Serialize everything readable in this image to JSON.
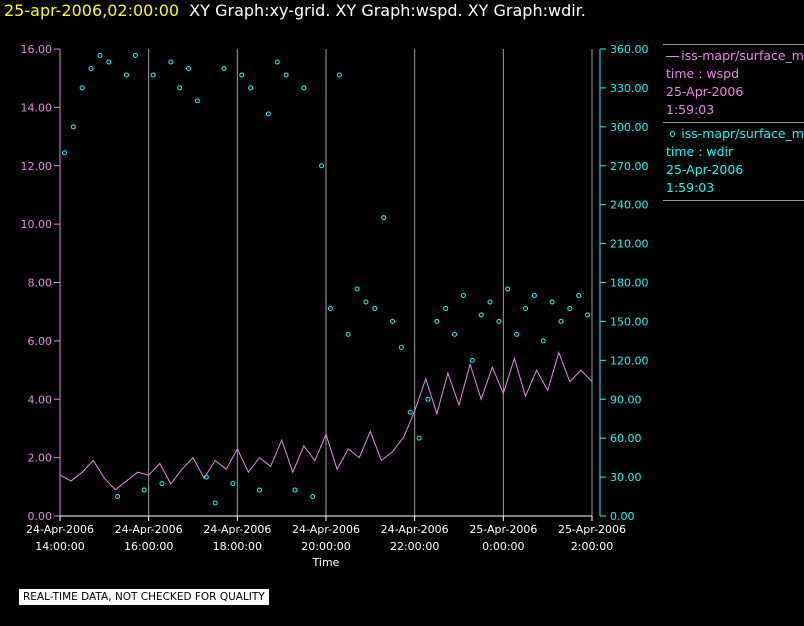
{
  "header": {
    "timestamp": "25-apr-2006,02:00:00",
    "graphs": "XY Graph:xy-grid.  XY Graph:wspd.  XY Graph:wdir."
  },
  "colors": {
    "background": "#000000",
    "wspd": "#ee82ee",
    "wdir": "#00ffff",
    "grid": "#a0a0a0",
    "axis_label": "#ffffff",
    "title_time": "#ffff00"
  },
  "legend": {
    "series1": {
      "line1": "iss-mapr/surface_m",
      "line2": "time : wspd",
      "line3": "25-Apr-2006",
      "line4": "1:59:03"
    },
    "series2": {
      "line1": "iss-mapr/surface_m",
      "line2": "time : wdir",
      "line3": "25-Apr-2006",
      "line4": "1:59:03"
    }
  },
  "footer": "REAL-TIME DATA, NOT CHECKED FOR QUALITY",
  "chart_data": {
    "type": "line",
    "title": "XY Graph:wspd, XY Graph:wdir",
    "xlabel": "Time",
    "x_unit": "hours since 24-Apr-2006 14:00",
    "xlim": [
      0,
      12
    ],
    "x_ticks": [
      {
        "value": 0,
        "date": "24-Apr-2006",
        "time": "14:00:00"
      },
      {
        "value": 2,
        "date": "24-Apr-2006",
        "time": "16:00:00"
      },
      {
        "value": 4,
        "date": "24-Apr-2006",
        "time": "18:00:00"
      },
      {
        "value": 6,
        "date": "24-Apr-2006",
        "time": "20:00:00"
      },
      {
        "value": 8,
        "date": "24-Apr-2006",
        "time": "22:00:00"
      },
      {
        "value": 10,
        "date": "25-Apr-2006",
        "time": "0:00:00"
      },
      {
        "value": 12,
        "date": "25-Apr-2006",
        "time": "2:00:00"
      }
    ],
    "y_left": {
      "min": 0,
      "max": 16,
      "tick_labels": [
        "0.00",
        "2.00",
        "4.00",
        "6.00",
        "8.00",
        "10.00",
        "12.00",
        "14.00",
        "16.00"
      ]
    },
    "y_right": {
      "min": 0,
      "max": 360,
      "tick_labels": [
        "0.00",
        "30.00",
        "60.00",
        "90.00",
        "120.00",
        "150.00",
        "180.00",
        "210.00",
        "240.00",
        "270.00",
        "300.00",
        "330.00",
        "360.00"
      ]
    },
    "grid": "vertical at x ticks",
    "series": [
      {
        "name": "wspd",
        "axis": "left",
        "style": "line",
        "x": [
          0.0,
          0.25,
          0.5,
          0.75,
          1.0,
          1.25,
          1.5,
          1.75,
          2.0,
          2.25,
          2.5,
          2.75,
          3.0,
          3.25,
          3.5,
          3.75,
          4.0,
          4.25,
          4.5,
          4.75,
          5.0,
          5.25,
          5.5,
          5.75,
          6.0,
          6.25,
          6.5,
          6.75,
          7.0,
          7.25,
          7.5,
          7.75,
          8.0,
          8.25,
          8.5,
          8.75,
          9.0,
          9.25,
          9.5,
          9.75,
          10.0,
          10.25,
          10.5,
          10.75,
          11.0,
          11.25,
          11.5,
          11.75,
          12.0
        ],
        "y": [
          1.4,
          1.2,
          1.5,
          1.9,
          1.3,
          0.9,
          1.2,
          1.5,
          1.4,
          1.8,
          1.1,
          1.6,
          2.0,
          1.3,
          1.9,
          1.6,
          2.3,
          1.5,
          2.0,
          1.7,
          2.6,
          1.5,
          2.4,
          1.9,
          2.8,
          1.6,
          2.3,
          2.0,
          2.9,
          1.9,
          2.2,
          2.7,
          3.6,
          4.7,
          3.5,
          4.9,
          3.8,
          5.2,
          4.0,
          5.1,
          4.2,
          5.4,
          4.1,
          5.0,
          4.3,
          5.6,
          4.6,
          5.0,
          4.6
        ]
      },
      {
        "name": "wdir",
        "axis": "right",
        "style": "markers",
        "x": [
          0.1,
          0.3,
          0.5,
          0.7,
          0.9,
          1.1,
          1.3,
          1.5,
          1.7,
          1.9,
          2.1,
          2.3,
          2.5,
          2.7,
          2.9,
          3.1,
          3.3,
          3.5,
          3.7,
          3.9,
          4.1,
          4.3,
          4.5,
          4.7,
          4.9,
          5.1,
          5.3,
          5.5,
          5.7,
          5.9,
          6.1,
          6.3,
          6.5,
          6.7,
          6.9,
          7.1,
          7.3,
          7.5,
          7.7,
          7.9,
          8.1,
          8.3,
          8.5,
          8.7,
          8.9,
          9.1,
          9.3,
          9.5,
          9.7,
          9.9,
          10.1,
          10.3,
          10.5,
          10.7,
          10.9,
          11.1,
          11.3,
          11.5,
          11.7,
          11.9
        ],
        "y": [
          280,
          300,
          330,
          345,
          355,
          350,
          15,
          340,
          355,
          20,
          340,
          25,
          350,
          330,
          345,
          320,
          30,
          10,
          345,
          25,
          340,
          330,
          20,
          310,
          350,
          340,
          20,
          330,
          15,
          270,
          160,
          340,
          140,
          175,
          165,
          160,
          230,
          150,
          130,
          80,
          60,
          90,
          150,
          160,
          140,
          170,
          120,
          155,
          165,
          150,
          175,
          140,
          160,
          170,
          135,
          165,
          150,
          160,
          170,
          155
        ]
      }
    ]
  }
}
